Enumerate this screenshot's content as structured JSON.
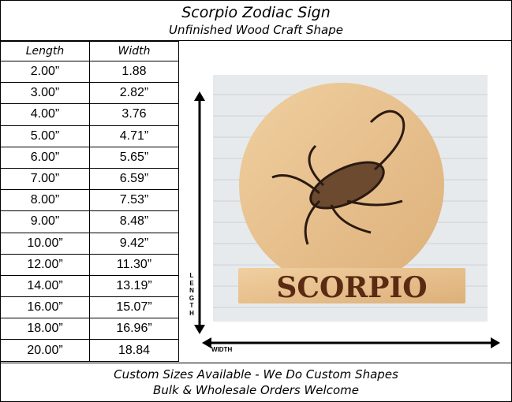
{
  "header": {
    "title": "Scorpio Zodiac Sign",
    "subtitle": "Unfinished Wood Craft Shape"
  },
  "table": {
    "headers": [
      "Length",
      "Width"
    ],
    "rows": [
      [
        "2.00”",
        "1.88"
      ],
      [
        "3.00”",
        "2.82”"
      ],
      [
        "4.00”",
        "3.76"
      ],
      [
        "5.00”",
        "4.71”"
      ],
      [
        "6.00”",
        "5.65”"
      ],
      [
        "7.00”",
        "6.59”"
      ],
      [
        "8.00”",
        "7.53”"
      ],
      [
        "9.00”",
        "8.48”"
      ],
      [
        "10.00”",
        "9.42”"
      ],
      [
        "12.00”",
        "11.30”"
      ],
      [
        "14.00”",
        "13.19”"
      ],
      [
        "16.00”",
        "15.07”"
      ],
      [
        "18.00”",
        "16.96”"
      ],
      [
        "20.00”",
        "18.84"
      ]
    ]
  },
  "image": {
    "sign_text": "SCORPIO",
    "length_label": "LENGTH",
    "width_label": "WIDTH",
    "wood_color": "#e8c08f",
    "text_color": "#5a2a12"
  },
  "footer": {
    "line1": "Custom Sizes Available - We Do Custom Shapes",
    "line2": "Bulk & Wholesale Orders Welcome"
  }
}
